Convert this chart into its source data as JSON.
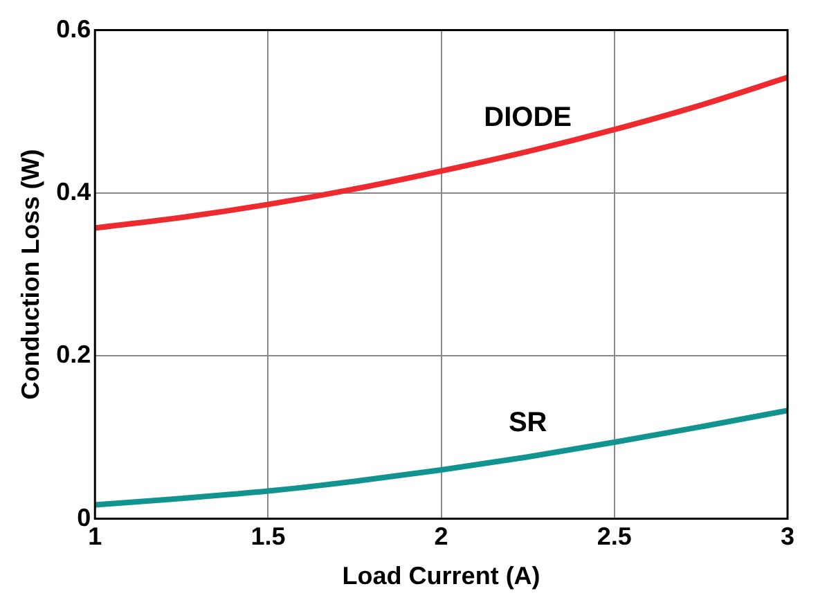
{
  "chart_data": {
    "type": "line",
    "xlabel": "Load Current (A)",
    "ylabel": "Conduction Loss (W)",
    "x": [
      1,
      1.25,
      1.5,
      1.75,
      2,
      2.25,
      2.5,
      2.75,
      3
    ],
    "series": [
      {
        "name": "DIODE",
        "color": "#ee2a2e",
        "values": [
          0.357,
          0.37,
          0.386,
          0.405,
          0.427,
          0.451,
          0.478,
          0.508,
          0.542
        ]
      },
      {
        "name": "SR",
        "color": "#11938f",
        "values": [
          0.017,
          0.025,
          0.034,
          0.046,
          0.06,
          0.076,
          0.094,
          0.113,
          0.133
        ]
      }
    ],
    "xlim": [
      1,
      3
    ],
    "xticks": [
      1,
      1.5,
      2,
      2.5,
      3
    ],
    "ylim": [
      0,
      0.6
    ],
    "yticks": [
      0,
      0.2,
      0.4,
      0.6
    ],
    "grid": true,
    "legend": false,
    "marker": "none",
    "line_style": "solid"
  }
}
